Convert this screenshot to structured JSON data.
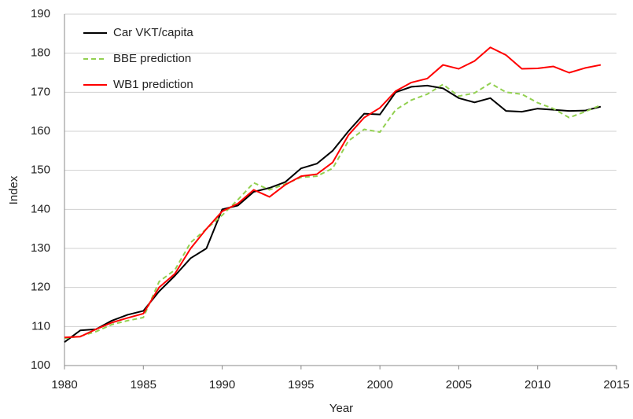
{
  "chart_data": {
    "type": "line",
    "x_label": "Year",
    "y_label": "Index",
    "x": [
      1980,
      1981,
      1982,
      1983,
      1984,
      1985,
      1986,
      1987,
      1988,
      1989,
      1990,
      1991,
      1992,
      1993,
      1994,
      1995,
      1996,
      1997,
      1998,
      1999,
      2000,
      2001,
      2002,
      2003,
      2004,
      2005,
      2006,
      2007,
      2008,
      2009,
      2010,
      2011,
      2012,
      2013,
      2014
    ],
    "series": [
      {
        "name": "Car VKT/capita",
        "color": "#000000",
        "style": "solid",
        "values": [
          106,
          109,
          109.3,
          111.5,
          113,
          114,
          119,
          123,
          127.5,
          130,
          140,
          141,
          144.5,
          145.5,
          147,
          150.5,
          151.7,
          155,
          160,
          164.5,
          164.3,
          170,
          171.4,
          171.7,
          171,
          168.5,
          167.4,
          168.5,
          165.2,
          165,
          165.8,
          165.5,
          165.2,
          165.3,
          166.3
        ]
      },
      {
        "name": "BBE prediction",
        "color": "#92d050",
        "style": "dashed",
        "values": [
          107,
          107.5,
          108.7,
          110.5,
          111.5,
          112.3,
          121.5,
          124.5,
          131.5,
          135,
          138.5,
          142.5,
          146.8,
          145,
          146.5,
          148.2,
          148.5,
          150.5,
          157.5,
          160.5,
          159.8,
          165.5,
          168,
          169.5,
          172,
          169,
          169.8,
          172.3,
          170,
          169.5,
          167.3,
          165.8,
          163.5,
          165,
          166.7
        ]
      },
      {
        "name": "WB1 prediction",
        "color": "#ff0000",
        "style": "solid",
        "values": [
          107.2,
          107.4,
          109.3,
          111,
          112.2,
          113.3,
          120,
          123.5,
          130,
          135,
          139.5,
          141.5,
          145,
          143.2,
          146.3,
          148.5,
          149,
          152,
          159,
          163.5,
          166,
          170.3,
          172.5,
          173.5,
          177,
          176,
          178,
          181.5,
          179.5,
          176,
          176.1,
          176.6,
          175,
          176.2,
          177
        ]
      }
    ],
    "xlim": [
      1980,
      2015
    ],
    "xticks": [
      1980,
      1985,
      1990,
      1995,
      2000,
      2005,
      2010,
      2015
    ],
    "ylim": [
      100,
      190
    ],
    "yticks": [
      100,
      110,
      120,
      130,
      140,
      150,
      160,
      170,
      180,
      190
    ],
    "grid": true,
    "legend": "upper-left"
  }
}
